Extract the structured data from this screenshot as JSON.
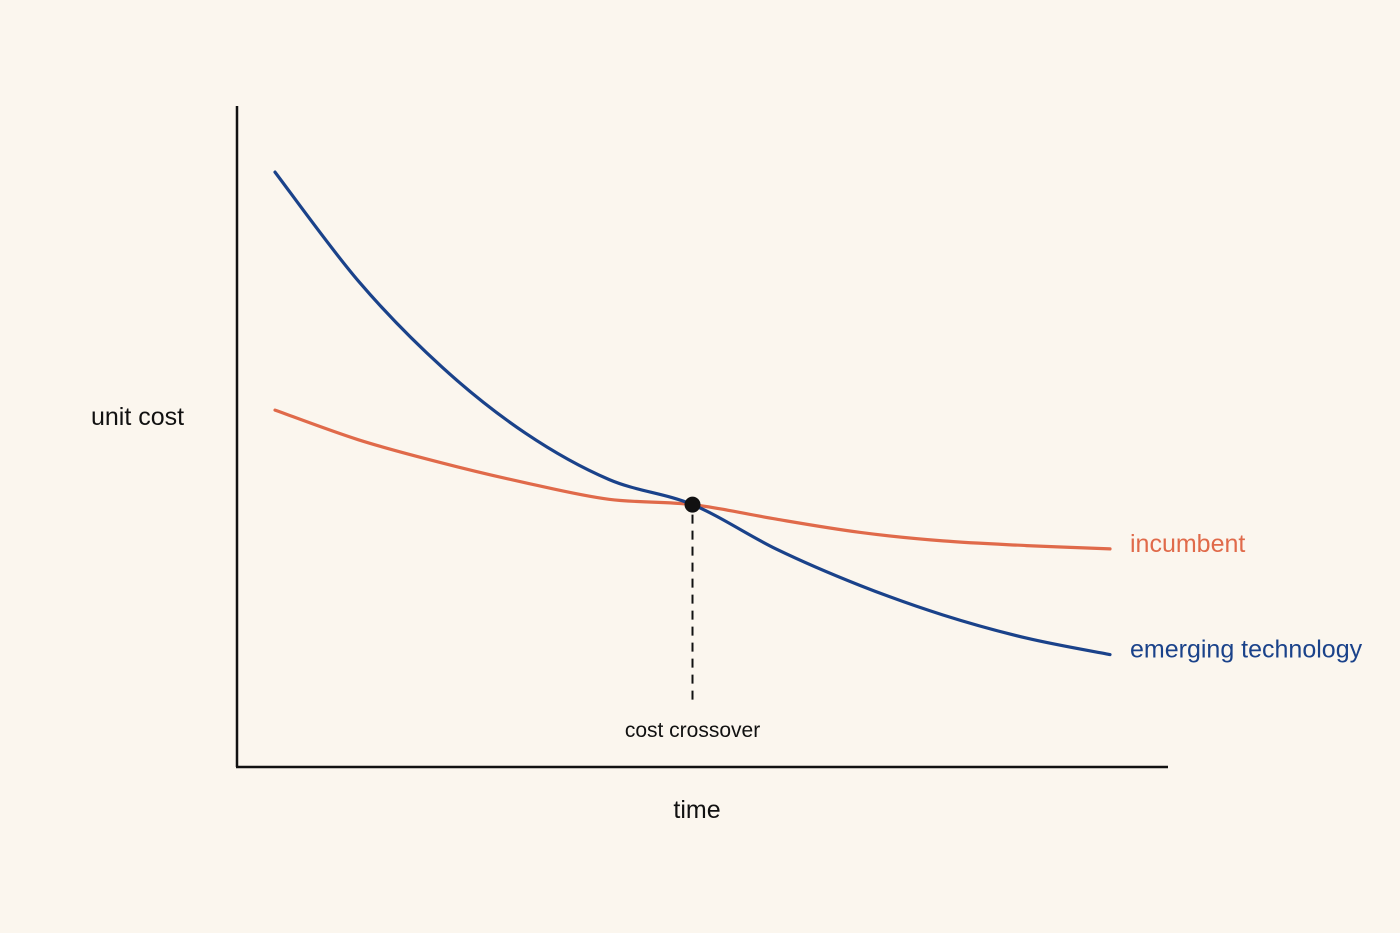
{
  "chart_data": {
    "type": "line",
    "title": "",
    "xlabel": "time",
    "ylabel": "unit cost",
    "xlim": [
      0,
      10
    ],
    "ylim": [
      0,
      10
    ],
    "grid": false,
    "ticks": false,
    "series": [
      {
        "name": "incumbent",
        "color": "#e06a4a",
        "x": [
          0,
          1,
          2,
          3,
          4,
          5,
          6,
          7,
          8,
          9,
          10
        ],
        "y": [
          5.4,
          4.95,
          4.6,
          4.3,
          4.05,
          3.97,
          3.75,
          3.55,
          3.42,
          3.35,
          3.3
        ]
      },
      {
        "name": "emerging technology",
        "color": "#1a428a",
        "x": [
          0,
          1,
          2,
          3,
          4,
          5,
          6,
          7,
          8,
          9,
          10
        ],
        "y": [
          9.0,
          7.35,
          6.05,
          5.05,
          4.35,
          3.97,
          3.3,
          2.75,
          2.3,
          1.95,
          1.7
        ]
      }
    ],
    "annotations": [
      {
        "label": "cost crossover",
        "x": 5.0,
        "y": 3.97
      }
    ]
  }
}
